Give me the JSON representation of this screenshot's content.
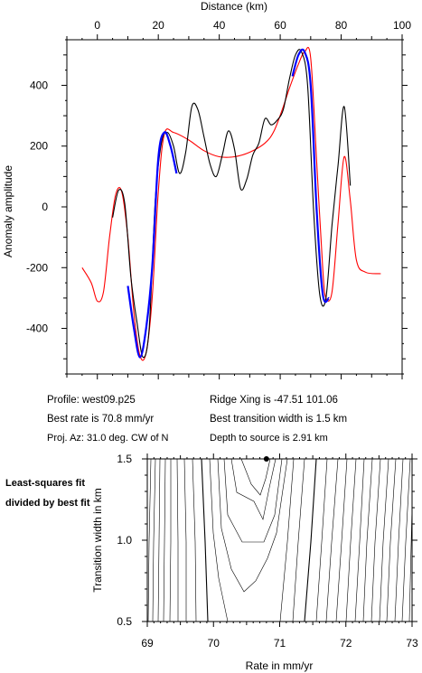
{
  "chart_data": [
    {
      "type": "line",
      "title": "",
      "xlabel": "Distance (km)",
      "ylabel": "Anomaly amplitude",
      "xlim": [
        -10,
        100
      ],
      "ylim": [
        -550,
        550
      ],
      "x_ticks": [
        "0",
        "20",
        "40",
        "60",
        "80",
        "100"
      ],
      "y_ticks": [
        "400",
        "200",
        "0",
        "-200",
        "-400"
      ],
      "x_tick_values": [
        0,
        20,
        40,
        60,
        80,
        100
      ],
      "y_tick_values": [
        400,
        200,
        0,
        -200,
        -400
      ],
      "grid": false,
      "series": [
        {
          "role": "observed",
          "color": "#000000",
          "x": [
            5,
            7,
            9,
            11,
            13,
            15,
            17,
            19,
            21,
            23,
            25,
            27,
            29,
            31,
            33,
            35,
            37,
            39,
            41,
            43,
            45,
            47,
            49,
            51,
            53,
            55,
            57,
            59,
            61,
            63,
            65,
            67,
            69,
            71,
            73,
            75,
            77,
            79,
            81,
            83
          ],
          "y": [
            -35,
            55,
            10,
            -230,
            -380,
            -495,
            -400,
            20,
            210,
            245,
            200,
            110,
            180,
            330,
            320,
            230,
            140,
            100,
            170,
            250,
            190,
            60,
            90,
            170,
            210,
            290,
            270,
            285,
            320,
            420,
            500,
            510,
            400,
            -20,
            -290,
            -300,
            -60,
            140,
            330,
            70
          ]
        },
        {
          "role": "modeled",
          "color": "#ff0000",
          "x": [
            -5,
            -2,
            0,
            2,
            4,
            6,
            8,
            10,
            12,
            14,
            16,
            18,
            20,
            22,
            25,
            30,
            35,
            40,
            45,
            50,
            55,
            58,
            61,
            63,
            66,
            68,
            70,
            72,
            74,
            75,
            77,
            79,
            81,
            83,
            85,
            88,
            93
          ],
          "y": [
            -200,
            -250,
            -310,
            -280,
            -100,
            40,
            50,
            -100,
            -350,
            -490,
            -480,
            -300,
            50,
            240,
            245,
            220,
            185,
            165,
            165,
            180,
            210,
            250,
            330,
            390,
            470,
            510,
            490,
            140,
            -210,
            -300,
            -280,
            -50,
            165,
            20,
            -175,
            -215,
            -220
          ]
        },
        {
          "role": "fitted-segment",
          "color": "#0000ff",
          "x": [
            10,
            12,
            14,
            16,
            18,
            20,
            22,
            24,
            26
          ],
          "y": [
            -260,
            -400,
            -495,
            -400,
            -200,
            160,
            245,
            200,
            110
          ]
        },
        {
          "role": "fitted-segment",
          "color": "#0000ff",
          "x": [
            64,
            66,
            68,
            70,
            72,
            74,
            76
          ],
          "y": [
            430,
            500,
            510,
            400,
            -20,
            -290,
            -300
          ]
        }
      ]
    },
    {
      "type": "contour",
      "title": "",
      "xlabel": "Rate in mm/yr",
      "ylabel": "Transition width in km",
      "xlim": [
        69,
        73
      ],
      "ylim": [
        0.5,
        1.5
      ],
      "x_ticks": [
        "69",
        "70",
        "71",
        "72",
        "73"
      ],
      "y_ticks": [
        "1.5",
        "1.0",
        "0.5"
      ],
      "x_tick_values": [
        69,
        70,
        71,
        72,
        73
      ],
      "y_tick_values": [
        1.5,
        1.0,
        0.5
      ],
      "best_fit": {
        "rate": 70.8,
        "width": 1.5
      }
    }
  ],
  "info": {
    "profile": "Profile: west09.p25",
    "best_rate": "Best rate is 70.8 mm/yr",
    "proj_az": "Proj. Az: 31.0 deg. CW of N",
    "ridge_xing": "Ridge Xing is -47.51 101.06",
    "transition_width": "Best transition width is 1.5 km",
    "depth": "Depth to source is   2.91 km"
  },
  "side_note": "Least-squares fit divided by best fit",
  "colors": {
    "observed": "#000000",
    "modeled": "#ff0000",
    "fitted": "#0000ff"
  }
}
